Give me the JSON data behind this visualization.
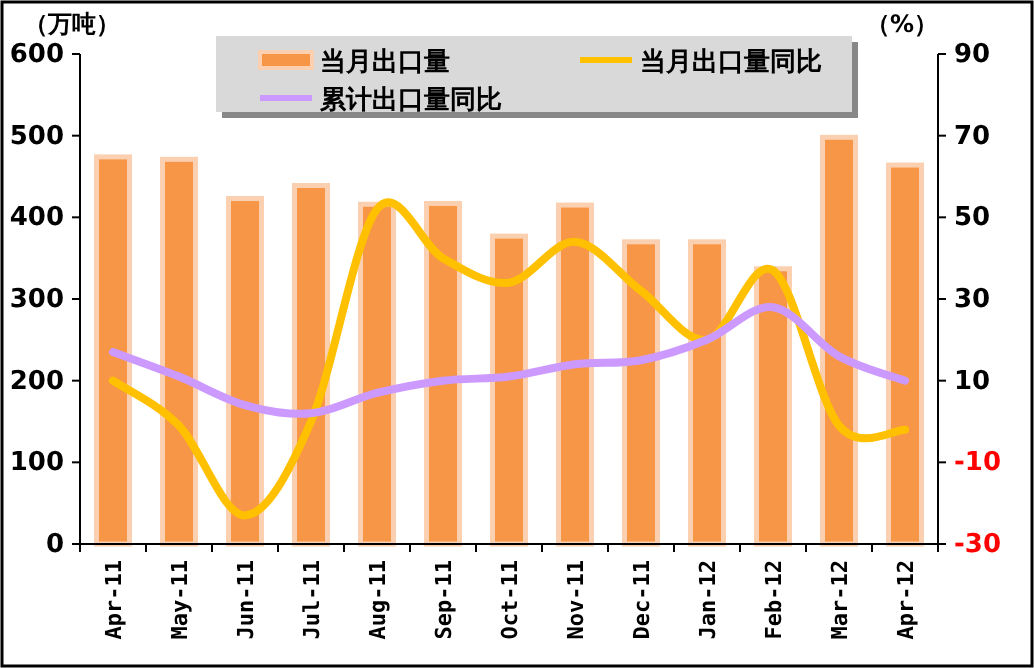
{
  "chart_data": {
    "type": "bar",
    "ylabel": "（万吨）",
    "y2label": "（%）",
    "categories": [
      "Apr-11",
      "May-11",
      "Jun-11",
      "Jul-11",
      "Aug-11",
      "Sep-11",
      "Oct-11",
      "Nov-11",
      "Dec-11",
      "Jan-12",
      "Feb-12",
      "Mar-12",
      "Apr-12"
    ],
    "series": [
      {
        "name": "当月出口量",
        "color": "#f79646",
        "values": [
          474,
          471,
          423,
          439,
          416,
          417,
          377,
          415,
          370,
          370,
          337,
          498,
          464
        ]
      },
      {
        "name": "当月出口量同比",
        "type": "line",
        "axis": "y2",
        "color": "#ffc000",
        "values": [
          10,
          -1,
          -23,
          0,
          52,
          40,
          34,
          44,
          32,
          20,
          37,
          -1,
          -2
        ]
      },
      {
        "name": "累计出口量同比",
        "type": "line",
        "axis": "y2",
        "color": "#cc99ff",
        "values": [
          17,
          11,
          4,
          2,
          7,
          10,
          11,
          14,
          15,
          20,
          28,
          16,
          10
        ]
      }
    ],
    "ylim": [
      0,
      600
    ],
    "yticks": [
      0,
      100,
      200,
      300,
      400,
      500,
      600
    ],
    "y2lim": [
      -30,
      90
    ],
    "y2ticks": [
      -30,
      -10,
      10,
      30,
      50,
      70,
      90
    ],
    "legend": "top",
    "grid": false
  }
}
